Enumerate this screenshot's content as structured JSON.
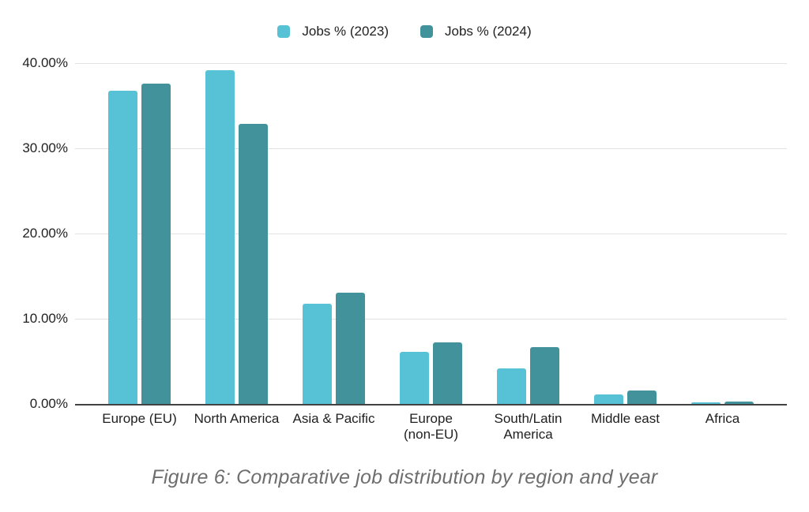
{
  "chart_data": {
    "type": "bar",
    "title": "",
    "caption": "Figure 6: Comparative job distribution by region and year",
    "categories": [
      "Europe (EU)",
      "North America",
      "Asia & Pacific",
      "Europe (non-EU)",
      "South/Latin America",
      "Middle east",
      "Africa"
    ],
    "category_display": [
      "Europe (EU)",
      "North America",
      "Asia & Pacific",
      "Europe\n(non-EU)",
      "South/Latin\nAmerica",
      "Middle east",
      "Africa"
    ],
    "series": [
      {
        "name": "Jobs % (2023)",
        "color": "#57c1d5",
        "values": [
          36.8,
          39.2,
          11.8,
          6.1,
          4.2,
          1.1,
          0.2
        ]
      },
      {
        "name": "Jobs % (2024)",
        "color": "#41929b",
        "values": [
          37.6,
          32.9,
          13.1,
          7.2,
          6.7,
          1.6,
          0.3
        ]
      }
    ],
    "xlabel": "",
    "ylabel": "",
    "ylim": [
      0,
      40
    ],
    "yticks": [
      {
        "value": 40,
        "label": "40.00%"
      },
      {
        "value": 30,
        "label": "30.00%"
      },
      {
        "value": 20,
        "label": "20.00%"
      },
      {
        "value": 10,
        "label": "10.00%"
      },
      {
        "value": 0,
        "label": "0.00%"
      }
    ],
    "grid": true,
    "legend_position": "top"
  },
  "colors": {
    "series_2023": "#57c1d5",
    "series_2024": "#41929b",
    "gridline": "#e2e2e2",
    "axis_line": "#424242",
    "tick_text": "#1f1f1f",
    "caption_text": "#6e6e6e",
    "background": "#ffffff"
  }
}
